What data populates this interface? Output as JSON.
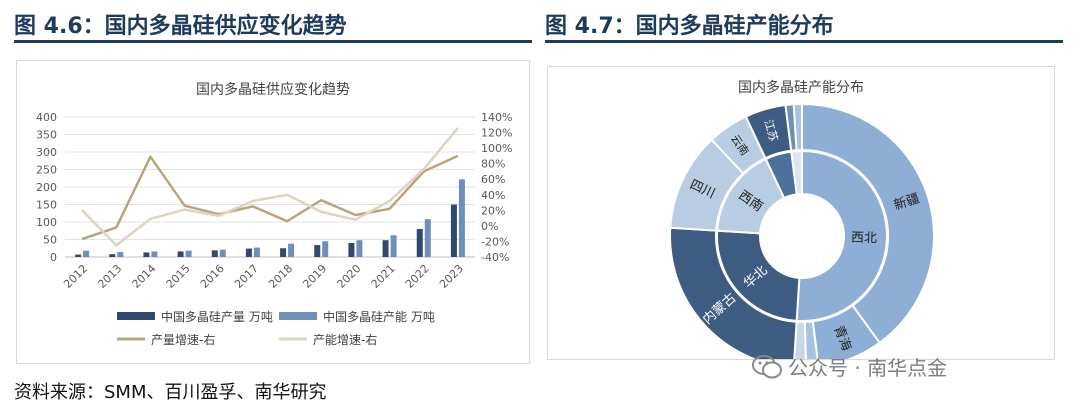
{
  "left_figure": {
    "title": "图 4.6：国内多晶硅供应变化趋势"
  },
  "right_figure": {
    "title": "图 4.7：国内多晶硅产能分布"
  },
  "source_text": "资料来源：SMM、百川盈孚、南华研究",
  "watermark": {
    "icon": "wechat-icon",
    "text": "公众号 · 南华点金"
  },
  "colors": {
    "title": "#1f3b5c",
    "production": "#2f4a6e",
    "capacity": "#6e8fba",
    "prod_growth": "#b9a47e",
    "cap_growth": "#ddd3bf"
  },
  "chart_data": [
    {
      "type": "bar",
      "title": "国内多晶硅供应变化趋势",
      "categories": [
        "2012",
        "2013",
        "2014",
        "2015",
        "2016",
        "2017",
        "2018",
        "2019",
        "2020",
        "2021",
        "2022",
        "2023"
      ],
      "y_left": {
        "ylim": [
          0,
          400
        ],
        "ticks": [
          "0",
          "50",
          "100",
          "150",
          "200",
          "250",
          "300",
          "350",
          "400"
        ]
      },
      "y_right": {
        "ylim": [
          -40,
          140
        ],
        "ticks": [
          "-40%",
          "-20%",
          "0%",
          "20%",
          "40%",
          "60%",
          "80%",
          "100%",
          "120%",
          "140%"
        ]
      },
      "series": [
        {
          "name": "中国多晶硅产量 万吨",
          "type": "bar",
          "axis": "left",
          "values": [
            7,
            8,
            13,
            16,
            19,
            24,
            25,
            34,
            40,
            48,
            80,
            150
          ]
        },
        {
          "name": "中国多晶硅产能 万吨",
          "type": "bar",
          "axis": "left",
          "values": [
            18,
            14,
            16,
            18,
            21,
            27,
            38,
            45,
            48,
            62,
            108,
            222
          ]
        },
        {
          "name": "产量增速-右",
          "type": "line",
          "axis": "right",
          "values": [
            -17,
            -2,
            89,
            26,
            15,
            25,
            6,
            33,
            14,
            22,
            70,
            90
          ]
        },
        {
          "name": "产能增速-右",
          "type": "line",
          "axis": "right",
          "values": [
            20,
            -25,
            9,
            21,
            13,
            32,
            40,
            18,
            8,
            32,
            73,
            126
          ]
        }
      ]
    },
    {
      "type": "pie",
      "title": "国内多晶硅产能分布",
      "inner_ring": [
        {
          "label": "西北",
          "value": 51
        },
        {
          "label": "华北",
          "value": 25
        },
        {
          "label": "西南",
          "value": 17
        },
        {
          "label": "",
          "value": 5
        },
        {
          "label": "",
          "value": 2
        }
      ],
      "outer_ring": [
        {
          "label": "新疆",
          "value": 40
        },
        {
          "label": "青海",
          "value": 8
        },
        {
          "label": "",
          "value": 1.5
        },
        {
          "label": "",
          "value": 1.5
        },
        {
          "label": "内蒙古",
          "value": 25
        },
        {
          "label": "四川",
          "value": 12
        },
        {
          "label": "云南",
          "value": 5
        },
        {
          "label": "江苏",
          "value": 5
        },
        {
          "label": "",
          "value": 1
        },
        {
          "label": "",
          "value": 1
        }
      ]
    }
  ]
}
